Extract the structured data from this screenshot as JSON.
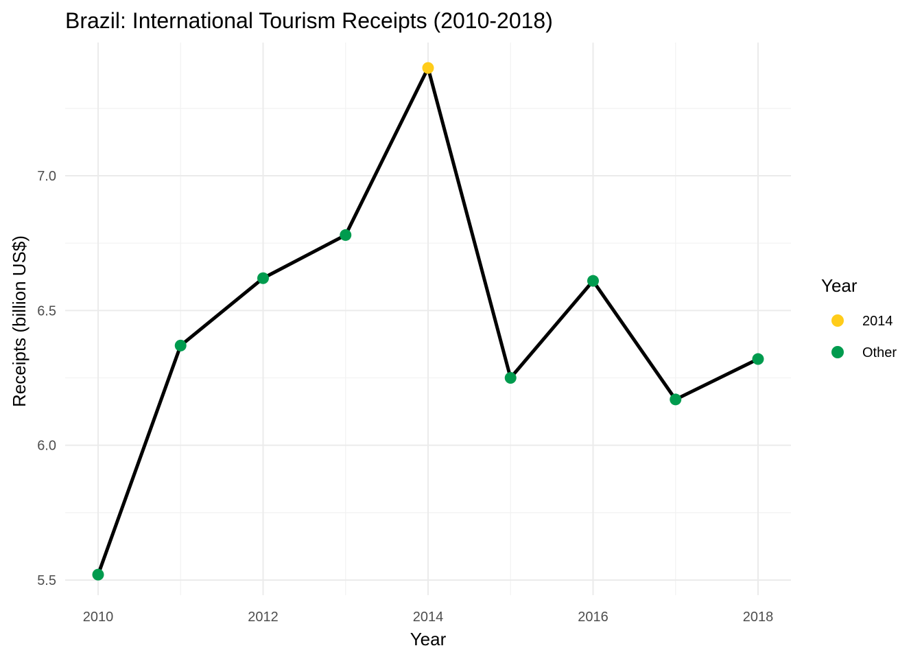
{
  "chart_data": {
    "type": "line",
    "title": "Brazil: International Tourism Receipts (2010-2018)",
    "xlabel": "Year",
    "ylabel": "Receipts (billion US$)",
    "x": [
      2010,
      2011,
      2012,
      2013,
      2014,
      2015,
      2016,
      2017,
      2018
    ],
    "series": [
      {
        "values": [
          5.52,
          6.37,
          6.62,
          6.78,
          7.4,
          6.25,
          6.61,
          6.17,
          6.32
        ]
      }
    ],
    "highlight": [
      false,
      false,
      false,
      false,
      true,
      false,
      false,
      false,
      false
    ],
    "xlim": [
      2010,
      2018
    ],
    "ylim": [
      5.5,
      7.4
    ],
    "xticks": [
      2010,
      2012,
      2014,
      2016,
      2018
    ],
    "xtick_labels": [
      "2010",
      "2012",
      "2014",
      "2016",
      "2018"
    ],
    "yticks": [
      5.5,
      6.0,
      6.5,
      7.0
    ],
    "ytick_labels": [
      "5.5",
      "6.0",
      "6.5",
      "7.0"
    ],
    "grid": true,
    "legend": {
      "title": "Year",
      "position": "right",
      "entries": [
        {
          "label": "2014",
          "color": "#FFCC1A"
        },
        {
          "label": "Other",
          "color": "#009B4E"
        }
      ]
    },
    "colors": {
      "line": "#000000",
      "highlight": "#FFCC1A",
      "other": "#009B4E"
    }
  }
}
